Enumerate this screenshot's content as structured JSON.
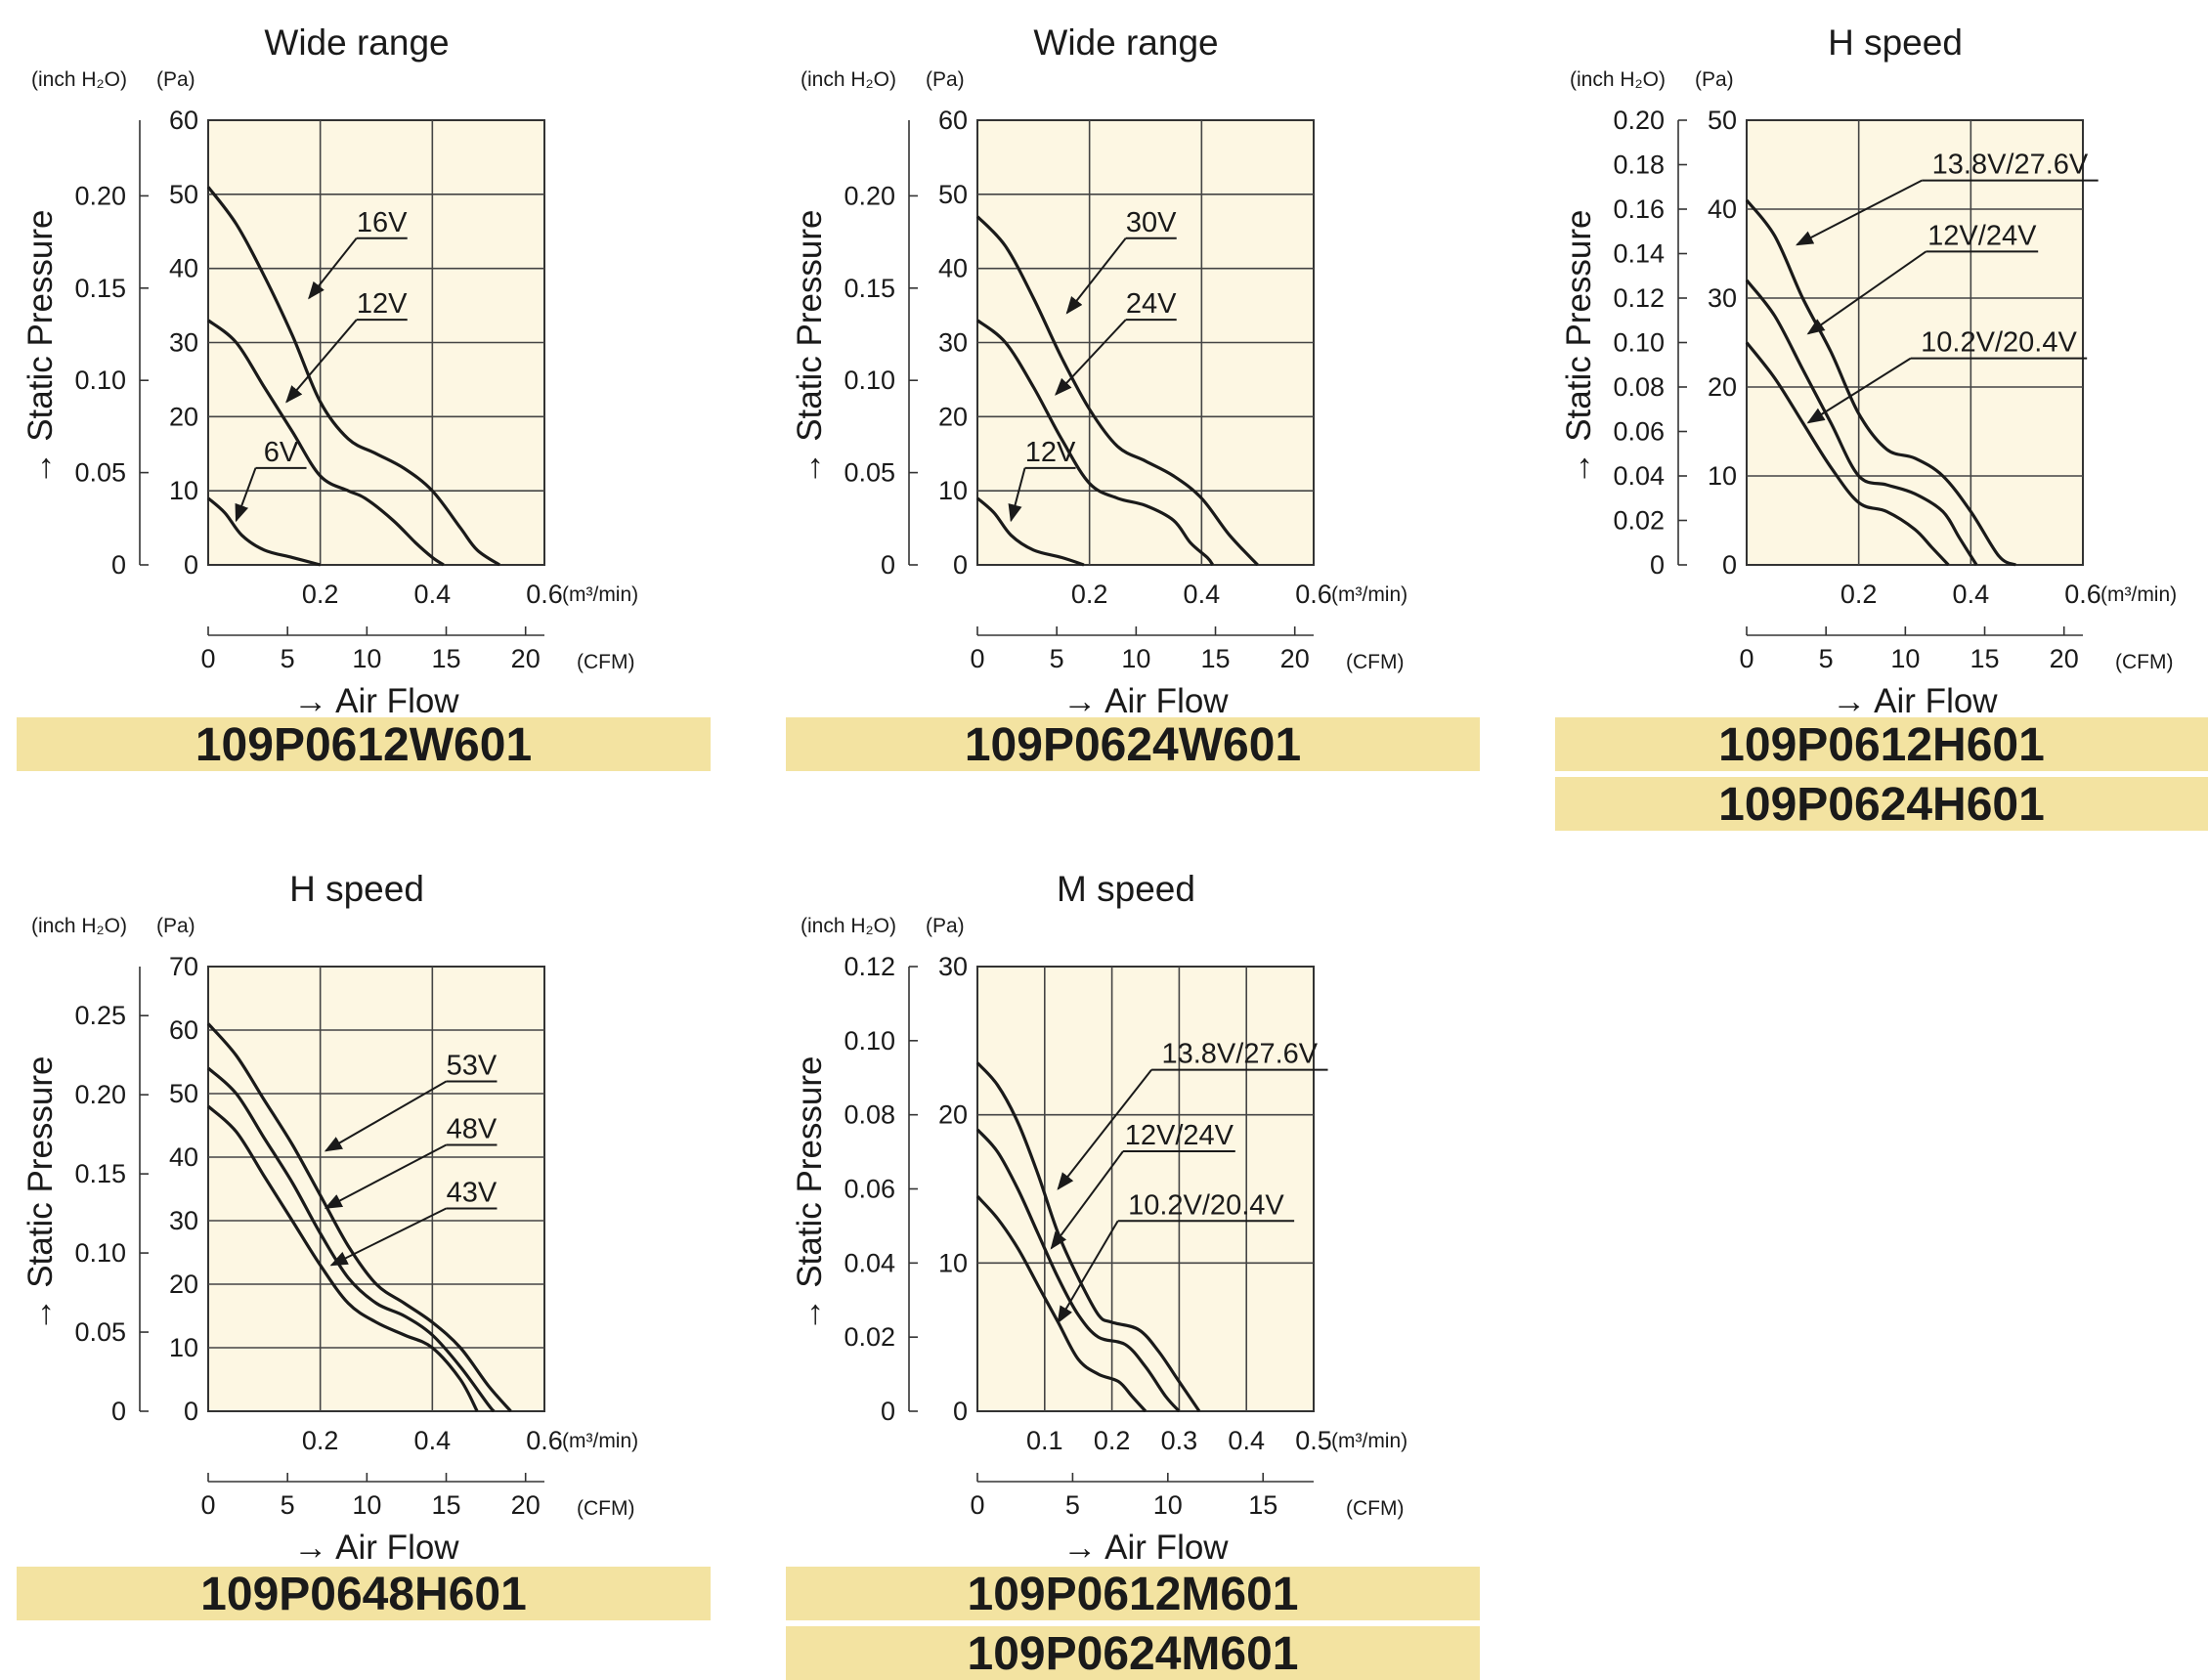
{
  "chart_data": [
    {
      "type": "line",
      "title": "Wide range",
      "model": [
        "109P0612W601"
      ],
      "left_unit": "(inch H₂O)",
      "right_unit": "(Pa)",
      "ylabel": "→ Static Pressure",
      "xlabel": "→ Air Flow",
      "x_unit": "(m³/min)",
      "x2_unit": "(CFM)",
      "xlim": [
        0,
        0.6
      ],
      "ylim": [
        0,
        60
      ],
      "grid": true,
      "x_ticks": [
        "0.2",
        "0.4",
        "0.6"
      ],
      "x_tick_values": [
        0.2,
        0.4,
        0.6
      ],
      "cfm_ticks": [
        "0",
        "5",
        "10",
        "15",
        "20"
      ],
      "cfm_tick_values": [
        0,
        5,
        10,
        15,
        20
      ],
      "pa_ticks": [
        "0",
        "10",
        "20",
        "30",
        "40",
        "50",
        "60"
      ],
      "pa_tick_values": [
        0,
        10,
        20,
        30,
        40,
        50,
        60
      ],
      "inch_ticks": [
        "0",
        "0.05",
        "0.10",
        "0.15",
        "0.20"
      ],
      "inch_tick_values": [
        0,
        0.05,
        0.1,
        0.15,
        0.2
      ],
      "inch_max": 0.241,
      "series": [
        {
          "name": "16V",
          "points": [
            [
              0,
              51
            ],
            [
              0.05,
              46
            ],
            [
              0.1,
              39
            ],
            [
              0.15,
              31
            ],
            [
              0.2,
              22
            ],
            [
              0.25,
              17
            ],
            [
              0.3,
              15
            ],
            [
              0.35,
              13
            ],
            [
              0.4,
              10
            ],
            [
              0.45,
              5
            ],
            [
              0.48,
              2
            ],
            [
              0.52,
              0
            ]
          ],
          "label_at": [
            0.31,
            45
          ],
          "arrow_to": [
            0.18,
            36
          ]
        },
        {
          "name": "12V",
          "points": [
            [
              0,
              33
            ],
            [
              0.05,
              30
            ],
            [
              0.1,
              24
            ],
            [
              0.15,
              18
            ],
            [
              0.2,
              12
            ],
            [
              0.25,
              10
            ],
            [
              0.28,
              9
            ],
            [
              0.33,
              6
            ],
            [
              0.37,
              3
            ],
            [
              0.4,
              1
            ],
            [
              0.42,
              0
            ]
          ],
          "label_at": [
            0.31,
            34
          ],
          "arrow_to": [
            0.14,
            22
          ]
        },
        {
          "name": "6V",
          "points": [
            [
              0,
              9
            ],
            [
              0.03,
              7
            ],
            [
              0.06,
              4
            ],
            [
              0.1,
              2
            ],
            [
              0.15,
              1
            ],
            [
              0.2,
              0
            ]
          ],
          "label_at": [
            0.13,
            14
          ],
          "arrow_to": [
            0.05,
            6
          ]
        }
      ]
    },
    {
      "type": "line",
      "title": "Wide range",
      "model": [
        "109P0624W601"
      ],
      "left_unit": "(inch H₂O)",
      "right_unit": "(Pa)",
      "ylabel": "→ Static Pressure",
      "xlabel": "→ Air Flow",
      "x_unit": "(m³/min)",
      "x2_unit": "(CFM)",
      "xlim": [
        0,
        0.6
      ],
      "ylim": [
        0,
        60
      ],
      "grid": true,
      "x_ticks": [
        "0.2",
        "0.4",
        "0.6"
      ],
      "x_tick_values": [
        0.2,
        0.4,
        0.6
      ],
      "cfm_ticks": [
        "0",
        "5",
        "10",
        "15",
        "20"
      ],
      "cfm_tick_values": [
        0,
        5,
        10,
        15,
        20
      ],
      "pa_ticks": [
        "0",
        "10",
        "20",
        "30",
        "40",
        "50",
        "60"
      ],
      "pa_tick_values": [
        0,
        10,
        20,
        30,
        40,
        50,
        60
      ],
      "inch_ticks": [
        "0",
        "0.05",
        "0.10",
        "0.15",
        "0.20"
      ],
      "inch_tick_values": [
        0,
        0.05,
        0.1,
        0.15,
        0.2
      ],
      "inch_max": 0.241,
      "series": [
        {
          "name": "30V",
          "points": [
            [
              0,
              47
            ],
            [
              0.05,
              43
            ],
            [
              0.1,
              36
            ],
            [
              0.15,
              28
            ],
            [
              0.2,
              21
            ],
            [
              0.25,
              16
            ],
            [
              0.3,
              14
            ],
            [
              0.35,
              12
            ],
            [
              0.4,
              9
            ],
            [
              0.45,
              4
            ],
            [
              0.5,
              0
            ]
          ],
          "label_at": [
            0.31,
            45
          ],
          "arrow_to": [
            0.16,
            34
          ]
        },
        {
          "name": "24V",
          "points": [
            [
              0,
              33
            ],
            [
              0.05,
              30
            ],
            [
              0.1,
              24
            ],
            [
              0.15,
              17
            ],
            [
              0.2,
              11
            ],
            [
              0.25,
              9
            ],
            [
              0.3,
              8
            ],
            [
              0.35,
              6
            ],
            [
              0.38,
              3
            ],
            [
              0.41,
              1
            ],
            [
              0.42,
              0
            ]
          ],
          "label_at": [
            0.31,
            34
          ],
          "arrow_to": [
            0.14,
            23
          ]
        },
        {
          "name": "12V",
          "points": [
            [
              0,
              9
            ],
            [
              0.03,
              7
            ],
            [
              0.06,
              4
            ],
            [
              0.1,
              2
            ],
            [
              0.15,
              1
            ],
            [
              0.19,
              0
            ]
          ],
          "label_at": [
            0.13,
            14
          ],
          "arrow_to": [
            0.06,
            6
          ]
        }
      ]
    },
    {
      "type": "line",
      "title": "H speed",
      "model": [
        "109P0612H601",
        "109P0624H601"
      ],
      "left_unit": "(inch H₂O)",
      "right_unit": "(Pa)",
      "ylabel": "→ Static Pressure",
      "xlabel": "→ Air Flow",
      "x_unit": "(m³/min)",
      "x2_unit": "(CFM)",
      "xlim": [
        0,
        0.6
      ],
      "ylim": [
        0,
        50
      ],
      "grid": true,
      "x_ticks": [
        "0.2",
        "0.4",
        "0.6"
      ],
      "x_tick_values": [
        0.2,
        0.4,
        0.6
      ],
      "cfm_ticks": [
        "0",
        "5",
        "10",
        "15",
        "20"
      ],
      "cfm_tick_values": [
        0,
        5,
        10,
        15,
        20
      ],
      "pa_ticks": [
        "0",
        "10",
        "20",
        "30",
        "40",
        "50"
      ],
      "pa_tick_values": [
        0,
        10,
        20,
        30,
        40,
        50
      ],
      "inch_ticks": [
        "0",
        "0.02",
        "0.04",
        "0.06",
        "0.08",
        "0.10",
        "0.12",
        "0.14",
        "0.16",
        "0.18",
        "0.20"
      ],
      "inch_tick_values": [
        0,
        0.02,
        0.04,
        0.06,
        0.08,
        0.1,
        0.12,
        0.14,
        0.16,
        0.18,
        0.2
      ],
      "inch_max": 0.2,
      "series": [
        {
          "name": "13.8V/27.6V",
          "points": [
            [
              0,
              41
            ],
            [
              0.05,
              37
            ],
            [
              0.1,
              30
            ],
            [
              0.15,
              24
            ],
            [
              0.2,
              17
            ],
            [
              0.25,
              13
            ],
            [
              0.3,
              12
            ],
            [
              0.35,
              10
            ],
            [
              0.4,
              6
            ],
            [
              0.45,
              1
            ],
            [
              0.48,
              0
            ]
          ],
          "label_at": [
            0.47,
            44
          ],
          "arrow_to": [
            0.09,
            36
          ]
        },
        {
          "name": "12V/24V",
          "points": [
            [
              0,
              32
            ],
            [
              0.05,
              28
            ],
            [
              0.1,
              22
            ],
            [
              0.15,
              16
            ],
            [
              0.2,
              10
            ],
            [
              0.25,
              9
            ],
            [
              0.3,
              8
            ],
            [
              0.35,
              6
            ],
            [
              0.38,
              3
            ],
            [
              0.41,
              0
            ]
          ],
          "label_at": [
            0.42,
            36
          ],
          "arrow_to": [
            0.11,
            26
          ]
        },
        {
          "name": "10.2V/20.4V",
          "points": [
            [
              0,
              25
            ],
            [
              0.05,
              21
            ],
            [
              0.1,
              16
            ],
            [
              0.15,
              11
            ],
            [
              0.2,
              7
            ],
            [
              0.25,
              6
            ],
            [
              0.3,
              4
            ],
            [
              0.33,
              2
            ],
            [
              0.36,
              0
            ]
          ],
          "label_at": [
            0.45,
            24
          ],
          "arrow_to": [
            0.11,
            16
          ]
        }
      ]
    },
    {
      "type": "line",
      "title": "H speed",
      "model": [
        "109P0648H601"
      ],
      "left_unit": "(inch H₂O)",
      "right_unit": "(Pa)",
      "ylabel": "→ Static Pressure",
      "xlabel": "→ Air Flow",
      "x_unit": "(m³/min)",
      "x2_unit": "(CFM)",
      "xlim": [
        0,
        0.6
      ],
      "ylim": [
        0,
        70
      ],
      "grid": true,
      "x_ticks": [
        "0.2",
        "0.4",
        "0.6"
      ],
      "x_tick_values": [
        0.2,
        0.4,
        0.6
      ],
      "cfm_ticks": [
        "0",
        "5",
        "10",
        "15",
        "20"
      ],
      "cfm_tick_values": [
        0,
        5,
        10,
        15,
        20
      ],
      "pa_ticks": [
        "0",
        "10",
        "20",
        "30",
        "40",
        "50",
        "60",
        "70"
      ],
      "pa_tick_values": [
        0,
        10,
        20,
        30,
        40,
        50,
        60,
        70
      ],
      "inch_ticks": [
        "0",
        "0.05",
        "0.10",
        "0.15",
        "0.20",
        "0.25"
      ],
      "inch_tick_values": [
        0,
        0.05,
        0.1,
        0.15,
        0.2,
        0.25
      ],
      "inch_max": 0.281,
      "series": [
        {
          "name": "53V",
          "points": [
            [
              0,
              61
            ],
            [
              0.05,
              56
            ],
            [
              0.1,
              49
            ],
            [
              0.15,
              42
            ],
            [
              0.2,
              34
            ],
            [
              0.25,
              26
            ],
            [
              0.3,
              20
            ],
            [
              0.35,
              17
            ],
            [
              0.4,
              14
            ],
            [
              0.45,
              10
            ],
            [
              0.5,
              4
            ],
            [
              0.54,
              0
            ]
          ],
          "label_at": [
            0.47,
            53
          ],
          "arrow_to": [
            0.21,
            41
          ]
        },
        {
          "name": "48V",
          "points": [
            [
              0,
              54
            ],
            [
              0.05,
              50
            ],
            [
              0.1,
              43
            ],
            [
              0.15,
              36
            ],
            [
              0.2,
              28
            ],
            [
              0.25,
              21
            ],
            [
              0.3,
              17
            ],
            [
              0.35,
              15
            ],
            [
              0.4,
              12
            ],
            [
              0.45,
              7
            ],
            [
              0.5,
              1
            ],
            [
              0.51,
              0
            ]
          ],
          "label_at": [
            0.47,
            43
          ],
          "arrow_to": [
            0.21,
            32
          ]
        },
        {
          "name": "43V",
          "points": [
            [
              0,
              48
            ],
            [
              0.05,
              44
            ],
            [
              0.1,
              37
            ],
            [
              0.15,
              30
            ],
            [
              0.2,
              23
            ],
            [
              0.25,
              17
            ],
            [
              0.3,
              14
            ],
            [
              0.35,
              12
            ],
            [
              0.4,
              10
            ],
            [
              0.45,
              5
            ],
            [
              0.48,
              0
            ]
          ],
          "label_at": [
            0.47,
            33
          ],
          "arrow_to": [
            0.22,
            23
          ]
        }
      ]
    },
    {
      "type": "line",
      "title": "M speed",
      "model": [
        "109P0612M601",
        "109P0624M601"
      ],
      "left_unit": "(inch H₂O)",
      "right_unit": "(Pa)",
      "ylabel": "→ Static Pressure",
      "xlabel": "→ Air Flow",
      "x_unit": "(m³/min)",
      "x2_unit": "(CFM)",
      "xlim": [
        0,
        0.5
      ],
      "ylim": [
        0,
        30
      ],
      "grid": true,
      "x_ticks": [
        "0.1",
        "0.2",
        "0.3",
        "0.4",
        "0.5"
      ],
      "x_tick_values": [
        0.1,
        0.2,
        0.3,
        0.4,
        0.5
      ],
      "cfm_ticks": [
        "0",
        "5",
        "10",
        "15"
      ],
      "cfm_tick_values": [
        0,
        5,
        10,
        15
      ],
      "pa_ticks": [
        "0",
        "10",
        "20",
        "30"
      ],
      "pa_tick_values": [
        0,
        10,
        20,
        30
      ],
      "inch_ticks": [
        "0",
        "0.02",
        "0.04",
        "0.06",
        "0.08",
        "0.10",
        "0.12"
      ],
      "inch_tick_values": [
        0,
        0.02,
        0.04,
        0.06,
        0.08,
        0.1,
        0.12
      ],
      "inch_max": 0.12,
      "series": [
        {
          "name": "13.8V/27.6V",
          "points": [
            [
              0,
              23.5
            ],
            [
              0.03,
              22
            ],
            [
              0.06,
              19.5
            ],
            [
              0.09,
              16
            ],
            [
              0.12,
              12
            ],
            [
              0.15,
              9
            ],
            [
              0.18,
              6.5
            ],
            [
              0.2,
              6
            ],
            [
              0.24,
              5.5
            ],
            [
              0.27,
              4
            ],
            [
              0.3,
              2
            ],
            [
              0.33,
              0
            ]
          ],
          "label_at": [
            0.39,
            23.5
          ],
          "arrow_to": [
            0.12,
            15
          ]
        },
        {
          "name": "12V/24V",
          "points": [
            [
              0,
              19
            ],
            [
              0.03,
              17.5
            ],
            [
              0.06,
              15
            ],
            [
              0.09,
              12
            ],
            [
              0.12,
              9
            ],
            [
              0.15,
              6.5
            ],
            [
              0.18,
              5
            ],
            [
              0.22,
              4.5
            ],
            [
              0.25,
              3
            ],
            [
              0.28,
              1
            ],
            [
              0.3,
              0
            ]
          ],
          "label_at": [
            0.3,
            18
          ],
          "arrow_to": [
            0.11,
            11
          ]
        },
        {
          "name": "10.2V/20.4V",
          "points": [
            [
              0,
              14.5
            ],
            [
              0.03,
              13
            ],
            [
              0.06,
              11
            ],
            [
              0.09,
              8.5
            ],
            [
              0.12,
              6
            ],
            [
              0.15,
              3.5
            ],
            [
              0.18,
              2.5
            ],
            [
              0.21,
              2
            ],
            [
              0.23,
              1
            ],
            [
              0.25,
              0
            ]
          ],
          "label_at": [
            0.34,
            13.3
          ],
          "arrow_to": [
            0.12,
            6
          ]
        }
      ]
    }
  ]
}
